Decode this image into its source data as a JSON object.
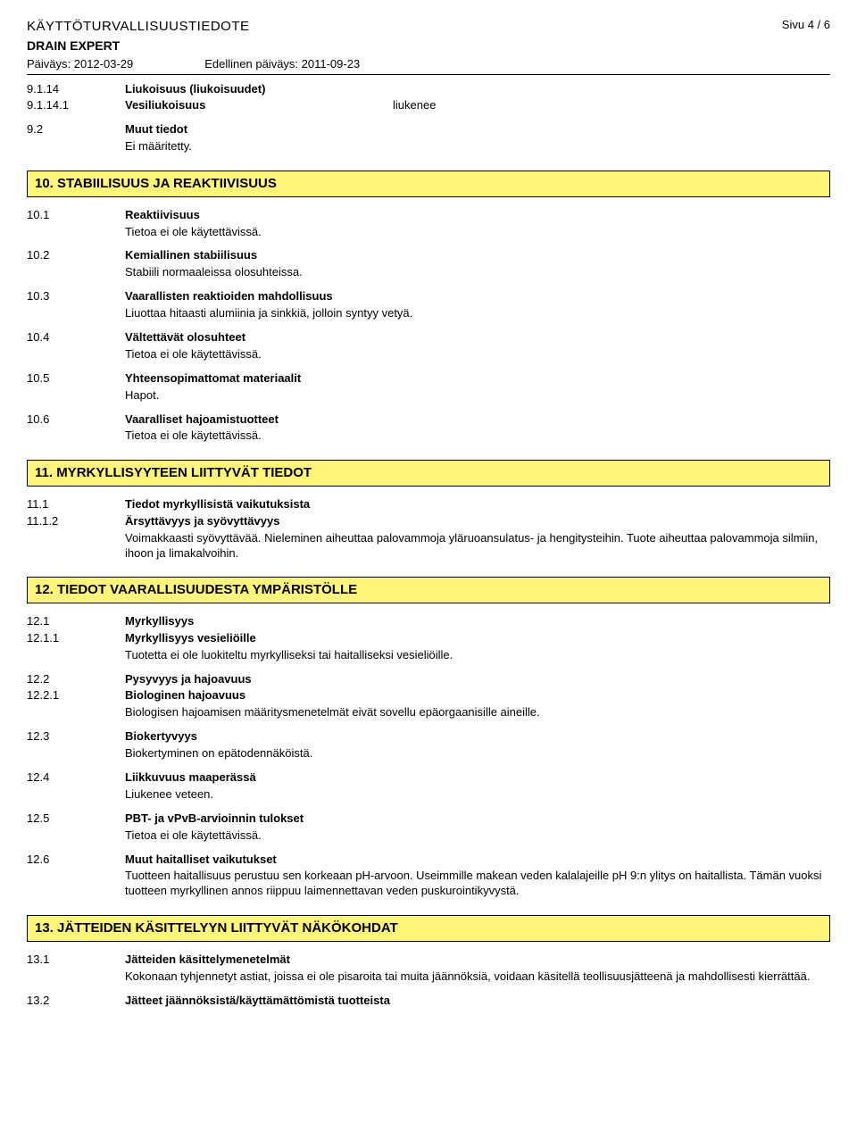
{
  "header": {
    "title": "KÄYTTÖTURVALLISUUSTIEDOTE",
    "subtitle": "DRAIN EXPERT",
    "date_label": "Päiväys: 2012-03-29",
    "prev_date_label": "Edellinen päiväys: 2011-09-23",
    "page": "Sivu 4 / 6"
  },
  "s9": {
    "e1": {
      "num": "9.1.14",
      "label": "Liukoisuus (liukoisuudet)"
    },
    "e2": {
      "num": "9.1.14.1",
      "label": "Vesiliukoisuus",
      "value": "liukenee"
    },
    "e3": {
      "num": "9.2",
      "label": "Muut tiedot",
      "body": "Ei määritetty."
    }
  },
  "s10": {
    "banner": "10. STABIILISUUS JA REAKTIIVISUUS",
    "e1": {
      "num": "10.1",
      "label": "Reaktiivisuus",
      "body": "Tietoa ei ole käytettävissä."
    },
    "e2": {
      "num": "10.2",
      "label": "Kemiallinen stabiilisuus",
      "body": "Stabiili normaaleissa olosuhteissa."
    },
    "e3": {
      "num": "10.3",
      "label": "Vaarallisten reaktioiden mahdollisuus",
      "body": "Liuottaa hitaasti alumiinia ja sinkkiä, jolloin syntyy vetyä."
    },
    "e4": {
      "num": "10.4",
      "label": "Vältettävät olosuhteet",
      "body": "Tietoa ei ole käytettävissä."
    },
    "e5": {
      "num": "10.5",
      "label": "Yhteensopimattomat materiaalit",
      "body": "Hapot."
    },
    "e6": {
      "num": "10.6",
      "label": "Vaaralliset hajoamistuotteet",
      "body": "Tietoa ei ole käytettävissä."
    }
  },
  "s11": {
    "banner": "11. MYRKYLLISYYTEEN LIITTYVÄT TIEDOT",
    "e1": {
      "num": "11.1",
      "label": "Tiedot myrkyllisistä vaikutuksista"
    },
    "e2": {
      "num": "11.1.2",
      "label": "Ärsyttävyys ja syövyttävyys",
      "body": "Voimakkaasti syövyttävää. Nieleminen aiheuttaa palovammoja yläruoansulatus- ja hengitysteihin. Tuote aiheuttaa palovammoja silmiin, ihoon ja limakalvoihin."
    }
  },
  "s12": {
    "banner": "12. TIEDOT VAARALLISUUDESTA YMPÄRISTÖLLE",
    "e1": {
      "num": "12.1",
      "label": "Myrkyllisyys"
    },
    "e2": {
      "num": "12.1.1",
      "label": "Myrkyllisyys vesieliöille",
      "body": "Tuotetta ei ole luokiteltu myrkylliseksi tai haitalliseksi vesieliöille."
    },
    "e3": {
      "num": "12.2",
      "label": "Pysyvyys ja hajoavuus"
    },
    "e4": {
      "num": "12.2.1",
      "label": "Biologinen hajoavuus",
      "body": "Biologisen hajoamisen määritysmenetelmät eivät sovellu epäorgaanisille aineille."
    },
    "e5": {
      "num": "12.3",
      "label": "Biokertyvyys",
      "body": "Biokertyminen on epätodennäköistä."
    },
    "e6": {
      "num": "12.4",
      "label": "Liikkuvuus maaperässä",
      "body": "Liukenee veteen."
    },
    "e7": {
      "num": "12.5",
      "label": "PBT- ja vPvB-arvioinnin tulokset",
      "body": "Tietoa ei ole käytettävissä."
    },
    "e8": {
      "num": "12.6",
      "label": "Muut haitalliset vaikutukset",
      "body": "Tuotteen haitallisuus perustuu sen korkeaan pH-arvoon. Useimmille makean veden kalalajeille pH 9:n ylitys on haitallista. Tämän vuoksi tuotteen myrkyllinen annos riippuu laimennettavan veden puskurointikyvystä."
    }
  },
  "s13": {
    "banner": "13. JÄTTEIDEN KÄSITTELYYN LIITTYVÄT NÄKÖKOHDAT",
    "e1": {
      "num": "13.1",
      "label": "Jätteiden käsittelymenetelmät",
      "body": "Kokonaan tyhjennetyt astiat, joissa ei ole pisaroita tai muita jäännöksiä, voidaan käsitellä teollisuusjätteenä ja mahdollisesti kierrättää."
    },
    "e2": {
      "num": "13.2",
      "label": "Jätteet jäännöksistä/käyttämättömistä tuotteista"
    }
  }
}
